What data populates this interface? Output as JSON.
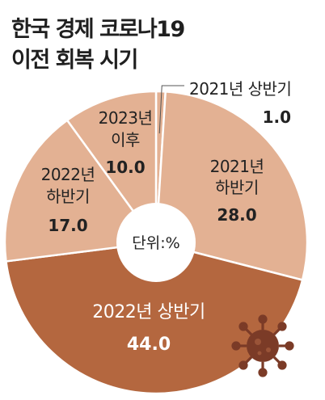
{
  "chart_data": {
    "type": "pie",
    "style": "donut",
    "title_lines": [
      "한국 경제 코로나19",
      "이전 회복 시기"
    ],
    "center_label": "단위:%",
    "unit": "%",
    "slices": [
      {
        "name_lines": [
          "2021년 상반기"
        ],
        "value": 1.0,
        "value_label": "1.0",
        "color": "#e3b193"
      },
      {
        "name_lines": [
          "2021년",
          "하반기"
        ],
        "value": 28.0,
        "value_label": "28.0",
        "color": "#e3b193"
      },
      {
        "name_lines": [
          "2022년 상반기"
        ],
        "value": 44.0,
        "value_label": "44.0",
        "color": "#b4673f"
      },
      {
        "name_lines": [
          "2022년",
          "하반기"
        ],
        "value": 17.0,
        "value_label": "17.0",
        "color": "#e3b193"
      },
      {
        "name_lines": [
          "2023년",
          "이후"
        ],
        "value": 10.0,
        "value_label": "10.0",
        "color": "#e3b193"
      }
    ],
    "grid": false,
    "legend": "none",
    "decoration": "virus-icon"
  }
}
